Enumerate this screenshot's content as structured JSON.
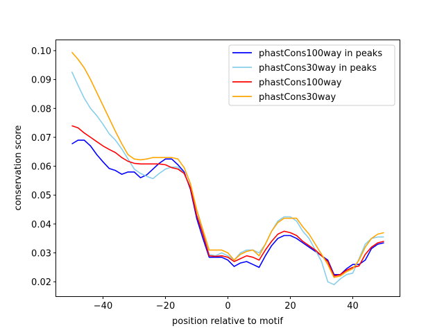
{
  "chart_data": {
    "type": "line",
    "title": "",
    "xlabel": "position relative to motif",
    "ylabel": "conservation score",
    "xlim": [
      -55,
      55
    ],
    "ylim": [
      0.015,
      0.1036
    ],
    "xticks": [
      -40,
      -20,
      0,
      20,
      40
    ],
    "xtick_labels": [
      "−40",
      "−20",
      "0",
      "20",
      "40"
    ],
    "yticks": [
      0.02,
      0.03,
      0.04,
      0.05,
      0.06,
      0.07,
      0.08,
      0.09,
      0.1
    ],
    "ytick_labels": [
      "0.02",
      "0.03",
      "0.04",
      "0.05",
      "0.06",
      "0.07",
      "0.08",
      "0.09",
      "0.10"
    ],
    "grid": false,
    "legend_position": "top-right",
    "x": [
      -50,
      -48,
      -46,
      -44,
      -42,
      -40,
      -38,
      -36,
      -34,
      -32,
      -30,
      -28,
      -26,
      -24,
      -22,
      -20,
      -18,
      -16,
      -14,
      -12,
      -10,
      -8,
      -6,
      -4,
      -2,
      0,
      2,
      4,
      6,
      8,
      10,
      12,
      14,
      16,
      18,
      20,
      22,
      24,
      26,
      28,
      30,
      32,
      34,
      36,
      38,
      40,
      42,
      44,
      46,
      48,
      50
    ],
    "series": [
      {
        "name": "phastCons100way in peaks",
        "color": "#0000ff",
        "values": [
          0.0677,
          0.069,
          0.069,
          0.067,
          0.064,
          0.0615,
          0.0592,
          0.0585,
          0.0572,
          0.058,
          0.058,
          0.056,
          0.057,
          0.059,
          0.061,
          0.0625,
          0.0625,
          0.0605,
          0.058,
          0.052,
          0.042,
          0.035,
          0.0285,
          0.0285,
          0.0285,
          0.0275,
          0.0253,
          0.0265,
          0.027,
          0.026,
          0.025,
          0.029,
          0.0325,
          0.035,
          0.036,
          0.036,
          0.035,
          0.0335,
          0.032,
          0.0305,
          0.029,
          0.0275,
          0.0225,
          0.0225,
          0.0245,
          0.026,
          0.026,
          0.0275,
          0.0315,
          0.033,
          0.0335
        ]
      },
      {
        "name": "phastCons30way in peaks",
        "color": "#87ceeb",
        "values": [
          0.0927,
          0.088,
          0.0835,
          0.08,
          0.0775,
          0.0745,
          0.0712,
          0.069,
          0.066,
          0.0625,
          0.059,
          0.0575,
          0.0565,
          0.0557,
          0.0575,
          0.059,
          0.0597,
          0.0597,
          0.0575,
          0.053,
          0.045,
          0.037,
          0.0295,
          0.029,
          0.03,
          0.029,
          0.0275,
          0.03,
          0.031,
          0.031,
          0.03,
          0.033,
          0.0375,
          0.041,
          0.0425,
          0.0425,
          0.041,
          0.0375,
          0.035,
          0.031,
          0.027,
          0.02,
          0.019,
          0.021,
          0.0225,
          0.023,
          0.028,
          0.033,
          0.035,
          0.0355,
          0.0355
        ]
      },
      {
        "name": "phastCons100way",
        "color": "#ff0000",
        "values": [
          0.074,
          0.0733,
          0.0715,
          0.07,
          0.0685,
          0.067,
          0.0658,
          0.0647,
          0.063,
          0.0617,
          0.061,
          0.0608,
          0.0608,
          0.0608,
          0.0608,
          0.0605,
          0.0595,
          0.059,
          0.0575,
          0.0525,
          0.043,
          0.0365,
          0.029,
          0.0288,
          0.029,
          0.0285,
          0.027,
          0.028,
          0.029,
          0.0285,
          0.0275,
          0.031,
          0.034,
          0.0365,
          0.0375,
          0.037,
          0.036,
          0.034,
          0.0325,
          0.031,
          0.029,
          0.027,
          0.022,
          0.0225,
          0.024,
          0.025,
          0.0255,
          0.0295,
          0.032,
          0.0335,
          0.034
        ]
      },
      {
        "name": "phastCons30way",
        "color": "#ffa500",
        "values": [
          0.0995,
          0.097,
          0.094,
          0.09,
          0.0855,
          0.081,
          0.0765,
          0.072,
          0.0678,
          0.064,
          0.0625,
          0.0622,
          0.0625,
          0.063,
          0.063,
          0.063,
          0.063,
          0.0625,
          0.0595,
          0.054,
          0.045,
          0.038,
          0.031,
          0.031,
          0.031,
          0.03,
          0.0275,
          0.0295,
          0.0305,
          0.031,
          0.029,
          0.033,
          0.0375,
          0.0405,
          0.042,
          0.042,
          0.042,
          0.039,
          0.0365,
          0.033,
          0.0295,
          0.026,
          0.0215,
          0.022,
          0.0235,
          0.0245,
          0.0275,
          0.032,
          0.035,
          0.0365,
          0.037
        ]
      }
    ]
  }
}
